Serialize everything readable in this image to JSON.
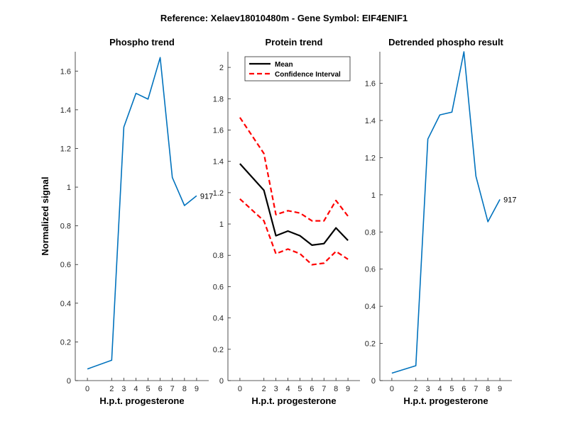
{
  "suptitle": "Reference:  Xelaev18010480m - Gene Symbol:  EIF4ENIF1",
  "colors": {
    "blue": "#0072BD",
    "black": "#000000",
    "red": "#FF0000"
  },
  "chart_data": [
    {
      "type": "line",
      "title": "Phospho trend",
      "xlabel": "H.p.t. progesterone",
      "ylabel": "Normalized signal",
      "x": [
        0,
        2,
        3,
        4,
        5,
        6,
        7,
        8,
        9
      ],
      "xlim": [
        -1,
        10
      ],
      "ylim": [
        0,
        1.7
      ],
      "yticks": [
        0,
        0.2,
        0.4,
        0.6,
        0.8,
        1,
        1.2,
        1.4,
        1.6
      ],
      "series": [
        {
          "values": [
            0.06,
            0.105,
            1.31,
            1.485,
            1.455,
            1.67,
            1.05,
            0.905,
            0.955
          ],
          "color": "#0072BD",
          "style": "solid"
        }
      ],
      "annotation": "917"
    },
    {
      "type": "line",
      "title": "Protein trend",
      "xlabel": "H.p.t. progesterone",
      "ylabel": "",
      "x": [
        0,
        2,
        3,
        4,
        5,
        6,
        7,
        8,
        9
      ],
      "xlim": [
        -1,
        10
      ],
      "ylim": [
        0,
        2.1
      ],
      "yticks": [
        0,
        0.2,
        0.4,
        0.6,
        0.8,
        1,
        1.2,
        1.4,
        1.6,
        1.8,
        2
      ],
      "legend": {
        "position": "top-left",
        "entries": [
          "Mean",
          "Confidence Interval"
        ]
      },
      "series": [
        {
          "name": "Mean",
          "values": [
            1.385,
            1.215,
            0.925,
            0.955,
            0.925,
            0.865,
            0.875,
            0.975,
            0.895
          ],
          "color": "#000000",
          "style": "solid"
        },
        {
          "name": "Confidence Interval",
          "values": [
            1.68,
            1.45,
            1.06,
            1.085,
            1.07,
            1.02,
            1.02,
            1.15,
            1.05
          ],
          "color": "#FF0000",
          "style": "dashed"
        },
        {
          "values": [
            1.16,
            1.02,
            0.81,
            0.84,
            0.81,
            0.74,
            0.75,
            0.825,
            0.775
          ],
          "color": "#FF0000",
          "style": "dashed"
        }
      ]
    },
    {
      "type": "line",
      "title": "Detrended phospho result",
      "xlabel": "H.p.t. progesterone",
      "ylabel": "",
      "x": [
        0,
        2,
        3,
        4,
        5,
        6,
        7,
        8,
        9
      ],
      "xlim": [
        -1,
        10
      ],
      "ylim": [
        0,
        1.77
      ],
      "yticks": [
        0,
        0.2,
        0.4,
        0.6,
        0.8,
        1,
        1.2,
        1.4,
        1.6
      ],
      "series": [
        {
          "values": [
            0.04,
            0.08,
            1.3,
            1.43,
            1.445,
            1.77,
            1.1,
            0.855,
            0.975
          ],
          "color": "#0072BD",
          "style": "solid"
        }
      ],
      "annotation": "917"
    }
  ]
}
